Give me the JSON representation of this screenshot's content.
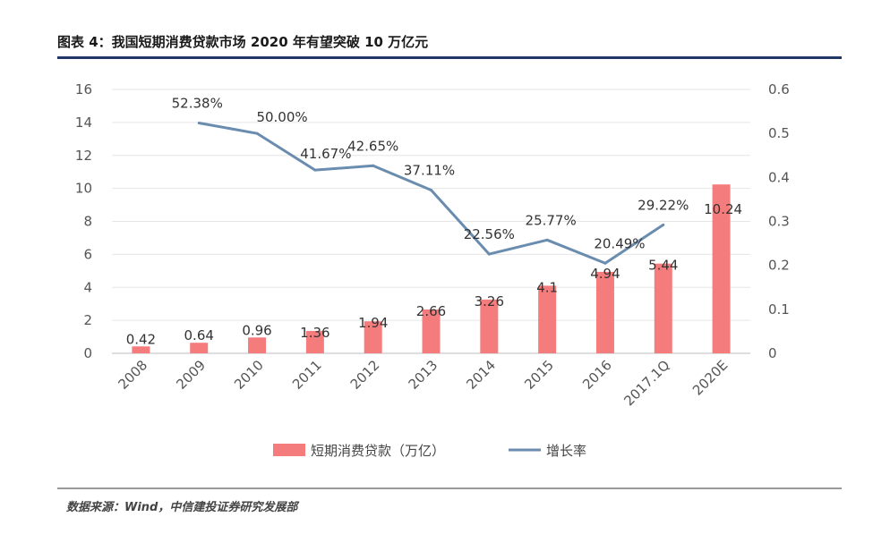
{
  "title": "图表 4：我国短期消费贷款市场 2020 年有望突破 10 万亿元",
  "source": "数据来源：Wind，中信建投证券研究发展部",
  "colors": {
    "bar": "#f47c7c",
    "line": "#6a8caf",
    "title_rule": "#1f3864"
  },
  "chart_data": {
    "type": "bar",
    "categories": [
      "2008",
      "2009",
      "2010",
      "2011",
      "2012",
      "2013",
      "2014",
      "2015",
      "2016",
      "2017.1Q",
      "2020E"
    ],
    "series": [
      {
        "name": "短期消费贷款（万亿）",
        "type": "bar",
        "axis": "left",
        "values": [
          0.42,
          0.64,
          0.96,
          1.36,
          1.94,
          2.66,
          3.26,
          4.1,
          4.94,
          5.44,
          10.24
        ],
        "labels": [
          "0.42",
          "0.64",
          "0.96",
          "1.36",
          "1.94",
          "2.66",
          "3.26",
          "4.1",
          "4.94",
          "5.44",
          "10.24"
        ]
      },
      {
        "name": "增长率",
        "type": "line",
        "axis": "right",
        "values": [
          null,
          0.5238,
          0.5,
          0.4167,
          0.4265,
          0.3711,
          0.2256,
          0.2577,
          0.2049,
          0.2922,
          null
        ],
        "labels": [
          "",
          "52.38%",
          "50.00%",
          "41.67%",
          "42.65%",
          "37.11%",
          "22.56%",
          "25.77%",
          "20.49%",
          "29.22%",
          ""
        ]
      }
    ],
    "y_left": {
      "min": 0,
      "max": 16,
      "ticks": [
        "0",
        "2",
        "4",
        "6",
        "8",
        "10",
        "12",
        "14",
        "16"
      ]
    },
    "y_right": {
      "min": 0,
      "max": 0.6,
      "ticks": [
        "0",
        "0.1",
        "0.2",
        "0.3",
        "0.4",
        "0.5",
        "0.6"
      ]
    },
    "grid": true,
    "legend": "bottom"
  }
}
